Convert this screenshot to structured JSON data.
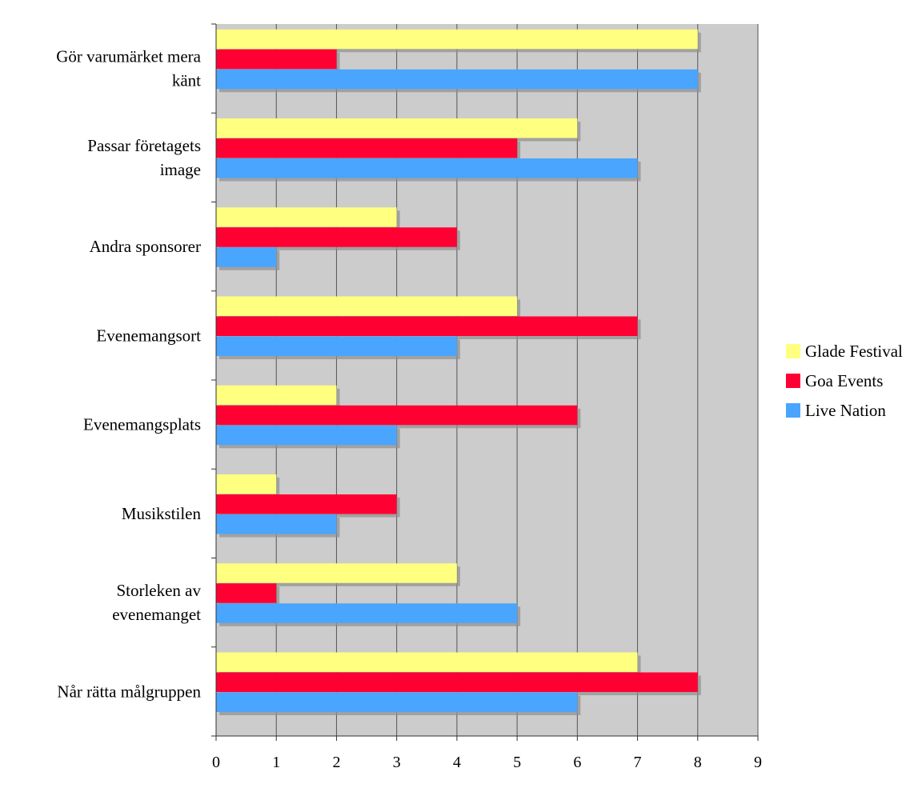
{
  "chart_data": {
    "type": "bar",
    "orientation": "horizontal",
    "categories": [
      [
        "Gör varumärket mera",
        "känt"
      ],
      [
        "Passar företagets",
        "image"
      ],
      [
        "Andra sponsorer"
      ],
      [
        "Evenemangsort"
      ],
      [
        "Evenemangsplats"
      ],
      [
        "Musikstilen"
      ],
      [
        "Storleken av",
        "evenemanget"
      ],
      [
        "Når rätta målgruppen"
      ]
    ],
    "series": [
      {
        "name": "Glade Festival",
        "color": "#FFFF80",
        "values": [
          8,
          6,
          3,
          5,
          2,
          1,
          4,
          7
        ]
      },
      {
        "name": "Goa Events",
        "color": "#FF0033",
        "values": [
          2,
          5,
          4,
          7,
          6,
          3,
          1,
          8
        ]
      },
      {
        "name": "Live Nation",
        "color": "#4AA5FF",
        "values": [
          8,
          7,
          1,
          4,
          3,
          2,
          5,
          6
        ]
      }
    ],
    "x_ticks": [
      "0",
      "1",
      "2",
      "3",
      "4",
      "5",
      "6",
      "7",
      "8",
      "9"
    ],
    "xlim": [
      0,
      9
    ],
    "grid": "vertical",
    "plot_background": "#CCCCCC",
    "legend_position": "right",
    "title": "",
    "xlabel": "",
    "ylabel": ""
  }
}
